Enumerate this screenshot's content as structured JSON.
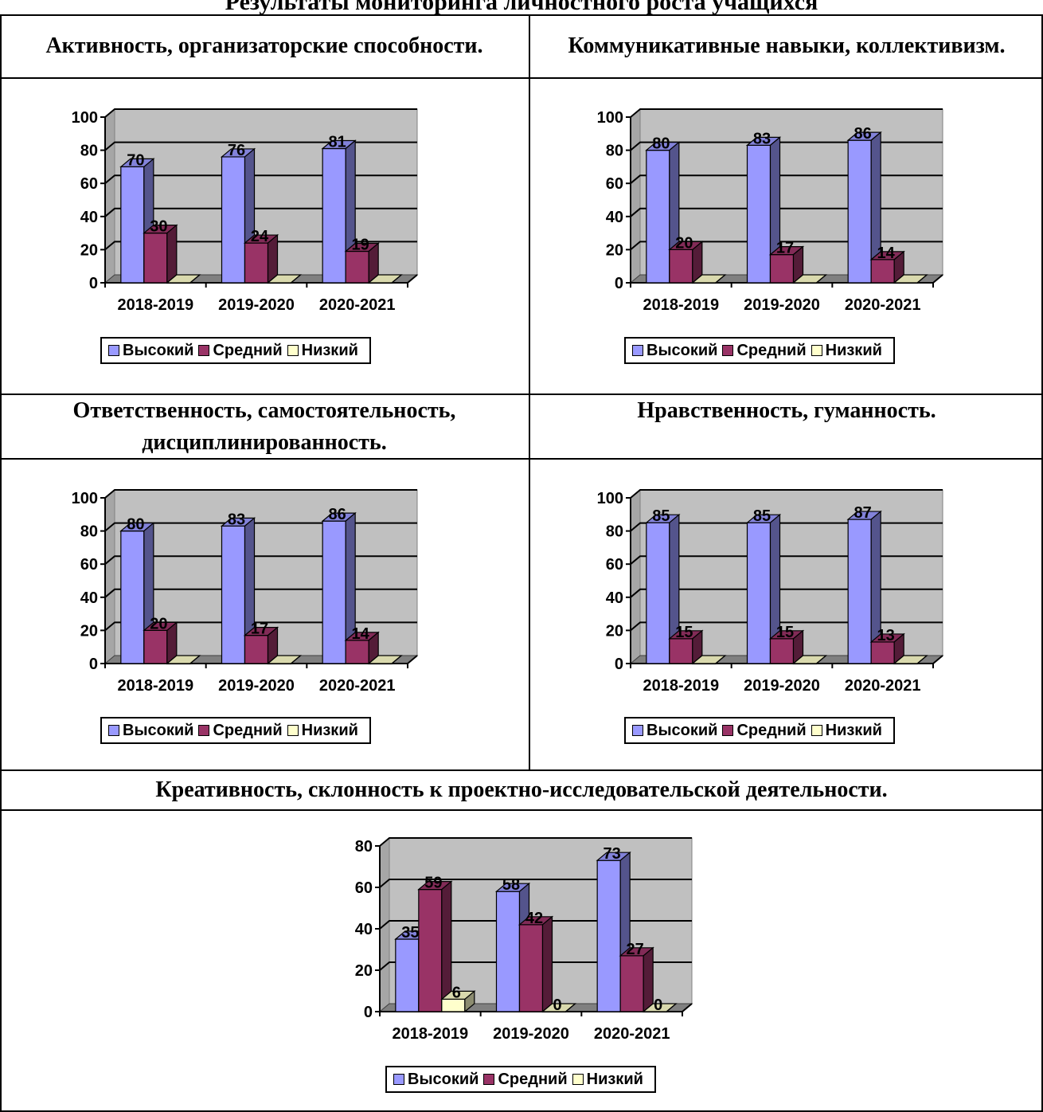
{
  "page_title": "Результаты мониторинга личностного роста учащихся",
  "colors": {
    "high": "#9999ff",
    "mid": "#993366",
    "low": "#ffffcc",
    "plot_bg": "#c0c0c0"
  },
  "legend": [
    "Высокий",
    "Средний",
    "Низкий"
  ],
  "chart_data": [
    {
      "type": "bar",
      "title": "Активность, организаторские способности.",
      "categories": [
        "2018-2019",
        "2019-2020",
        "2020-2021"
      ],
      "series": [
        {
          "name": "Высокий",
          "values": [
            70,
            76,
            81
          ]
        },
        {
          "name": "Средний",
          "values": [
            30,
            24,
            19
          ]
        },
        {
          "name": "Низкий",
          "values": [
            0,
            0,
            0
          ]
        }
      ],
      "ylim": [
        0,
        100
      ],
      "yticks": [
        0,
        20,
        40,
        60,
        80,
        100
      ],
      "grid": true,
      "legend_position": "bottom"
    },
    {
      "type": "bar",
      "title": "Коммуникативные навыки, коллективизм.",
      "categories": [
        "2018-2019",
        "2019-2020",
        "2020-2021"
      ],
      "series": [
        {
          "name": "Высокий",
          "values": [
            80,
            83,
            86
          ]
        },
        {
          "name": "Средний",
          "values": [
            20,
            17,
            14
          ]
        },
        {
          "name": "Низкий",
          "values": [
            0,
            0,
            0
          ]
        }
      ],
      "ylim": [
        0,
        100
      ],
      "yticks": [
        0,
        20,
        40,
        60,
        80,
        100
      ],
      "grid": true,
      "legend_position": "bottom"
    },
    {
      "type": "bar",
      "title": "Ответственность, самостоятельность, дисциплинированность.",
      "categories": [
        "2018-2019",
        "2019-2020",
        "2020-2021"
      ],
      "series": [
        {
          "name": "Высокий",
          "values": [
            80,
            83,
            86
          ]
        },
        {
          "name": "Средний",
          "values": [
            20,
            17,
            14
          ]
        },
        {
          "name": "Низкий",
          "values": [
            0,
            0,
            0
          ]
        }
      ],
      "ylim": [
        0,
        100
      ],
      "yticks": [
        0,
        20,
        40,
        60,
        80,
        100
      ],
      "grid": true,
      "legend_position": "bottom"
    },
    {
      "type": "bar",
      "title": "Нравственность, гуманность.",
      "categories": [
        "2018-2019",
        "2019-2020",
        "2020-2021"
      ],
      "series": [
        {
          "name": "Высокий",
          "values": [
            85,
            85,
            87
          ]
        },
        {
          "name": "Средний",
          "values": [
            15,
            15,
            13
          ]
        },
        {
          "name": "Низкий",
          "values": [
            0,
            0,
            0
          ]
        }
      ],
      "ylim": [
        0,
        100
      ],
      "yticks": [
        0,
        20,
        40,
        60,
        80,
        100
      ],
      "grid": true,
      "legend_position": "bottom"
    },
    {
      "type": "bar",
      "title": "Креативность, склонность к проектно-исследовательской деятельности.",
      "categories": [
        "2018-2019",
        "2019-2020",
        "2020-2021"
      ],
      "series": [
        {
          "name": "Высокий",
          "values": [
            35,
            58,
            73
          ]
        },
        {
          "name": "Средний",
          "values": [
            59,
            42,
            27
          ]
        },
        {
          "name": "Низкий",
          "values": [
            6,
            0,
            0
          ]
        }
      ],
      "ylim": [
        0,
        80
      ],
      "yticks": [
        0,
        20,
        40,
        60,
        80
      ],
      "grid": true,
      "legend_position": "bottom"
    }
  ]
}
